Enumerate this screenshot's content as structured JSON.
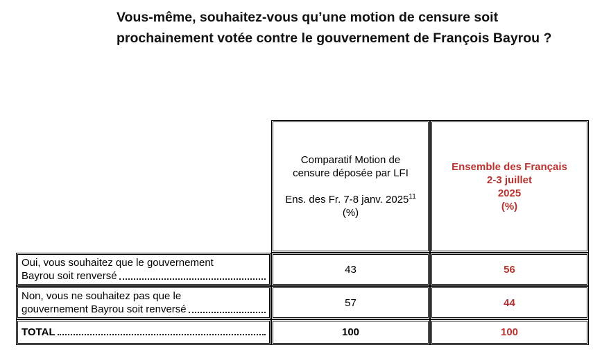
{
  "question": {
    "line1": "Vous-même, souhaitez-vous qu’une motion de censure soit",
    "line2": "prochainement votée contre le gouvernement de François Bayrou ?"
  },
  "columns": [
    {
      "line1": "Comparatif Motion de",
      "line2": "censure déposée par LFI",
      "line3": "Ens. des Fr. 7-8 janv. 2025",
      "footnote": "11",
      "unit": "(%)"
    },
    {
      "line1": "Ensemble des Français",
      "line2": "2-3 juillet",
      "line3": "2025",
      "unit": "(%)"
    }
  ],
  "rows": [
    {
      "label_line1": "Oui, vous souhaitez que le gouvernement",
      "label_line2": "Bayrou soit renversé",
      "values": [
        "43",
        "56"
      ]
    },
    {
      "label_line1": "Non, vous ne souhaitez pas que le",
      "label_line2": "gouvernement Bayrou soit renversé",
      "values": [
        "57",
        "44"
      ]
    }
  ],
  "total": {
    "label": "TOTAL",
    "values": [
      "100",
      "100"
    ]
  },
  "colors": {
    "highlight": "#b8322f",
    "text": "#000000"
  }
}
